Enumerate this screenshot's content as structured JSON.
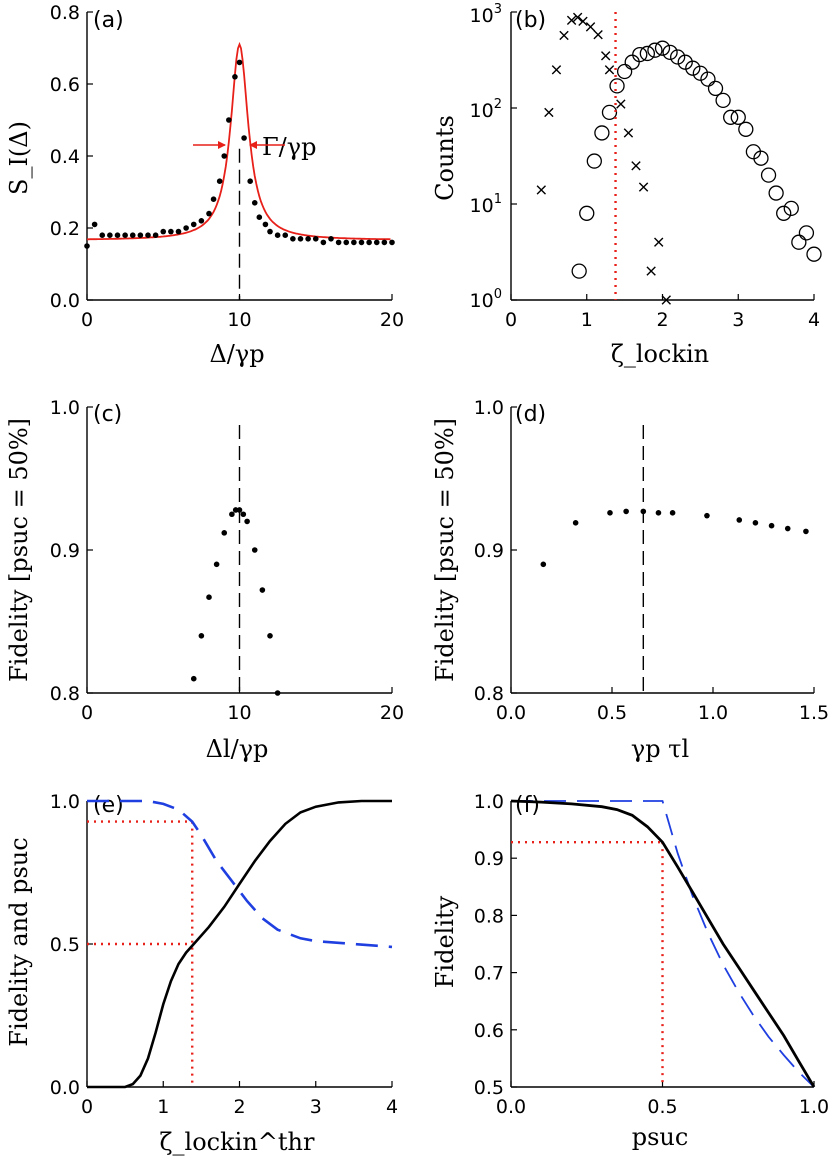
{
  "chart_data": [
    {
      "panel": "(a)",
      "type": "line",
      "xlabel": "Δ/γp",
      "ylabel": "S_I(Δ)",
      "xlim": [
        0,
        20
      ],
      "ylim": [
        0,
        0.8
      ],
      "xticks": [
        0,
        10,
        20
      ],
      "yticks": [
        0.0,
        0.2,
        0.4,
        0.6,
        0.8
      ],
      "annotation": "Γ/γp",
      "vline_x": 10,
      "fit": {
        "name": "Lorentzian fit",
        "color": "#e8201a",
        "baseline": 0.166,
        "amplitude": 0.544,
        "center": 10,
        "half_width": 0.7
      },
      "series": [
        {
          "name": "data",
          "style": "dots",
          "x": [
            0.0,
            0.5,
            1.0,
            1.5,
            2.0,
            2.5,
            3.0,
            3.5,
            4.0,
            4.5,
            5.0,
            5.5,
            6.0,
            6.5,
            7.0,
            7.5,
            8.0,
            8.3,
            8.7,
            9.0,
            9.3,
            9.7,
            10.0,
            10.3,
            10.7,
            11.0,
            11.3,
            11.7,
            12.0,
            12.5,
            13.0,
            13.5,
            14.0,
            14.5,
            15.0,
            15.5,
            16.0,
            16.5,
            17.0,
            17.5,
            18.0,
            18.5,
            19.0,
            19.5,
            20.0
          ],
          "y": [
            0.15,
            0.21,
            0.18,
            0.18,
            0.18,
            0.18,
            0.18,
            0.18,
            0.18,
            0.18,
            0.19,
            0.19,
            0.19,
            0.2,
            0.21,
            0.22,
            0.24,
            0.28,
            0.33,
            0.4,
            0.5,
            0.62,
            0.66,
            0.45,
            0.33,
            0.27,
            0.23,
            0.21,
            0.19,
            0.18,
            0.18,
            0.17,
            0.17,
            0.17,
            0.17,
            0.16,
            0.17,
            0.16,
            0.16,
            0.16,
            0.16,
            0.16,
            0.16,
            0.16,
            0.16
          ]
        }
      ]
    },
    {
      "panel": "(b)",
      "type": "scatter",
      "xlabel": "ζ_lockin",
      "ylabel": "Counts",
      "yscale": "log",
      "xlim": [
        0,
        4
      ],
      "ylim": [
        1,
        1000
      ],
      "xticks": [
        0,
        1,
        2,
        3,
        4
      ],
      "yticks": [
        "10^0",
        "10^1",
        "10^2",
        "10^3"
      ],
      "vline_x": 1.38,
      "vline_color": "#e8201a",
      "series": [
        {
          "name": "crosses",
          "marker": "x",
          "x": [
            0.4,
            0.5,
            0.6,
            0.7,
            0.8,
            0.88,
            0.95,
            1.05,
            1.15,
            1.25,
            1.3,
            1.45,
            1.55,
            1.65,
            1.75,
            1.85,
            1.95,
            2.05
          ],
          "y": [
            14,
            90,
            250,
            570,
            820,
            880,
            800,
            700,
            580,
            350,
            250,
            110,
            55,
            25,
            15,
            2,
            4,
            1
          ]
        },
        {
          "name": "circles",
          "marker": "o",
          "x": [
            0.9,
            1.0,
            1.1,
            1.2,
            1.3,
            1.4,
            1.5,
            1.6,
            1.7,
            1.8,
            1.9,
            2.0,
            2.1,
            2.2,
            2.3,
            2.4,
            2.5,
            2.6,
            2.7,
            2.8,
            2.9,
            3.0,
            3.1,
            3.2,
            3.3,
            3.4,
            3.5,
            3.6,
            3.7,
            3.8,
            3.9,
            4.0
          ],
          "y": [
            2,
            8,
            28,
            55,
            90,
            170,
            240,
            300,
            360,
            370,
            400,
            420,
            380,
            340,
            300,
            260,
            230,
            200,
            160,
            120,
            80,
            80,
            60,
            35,
            30,
            20,
            13,
            8,
            9,
            4,
            5,
            3
          ]
        }
      ]
    },
    {
      "panel": "(c)",
      "type": "scatter",
      "xlabel": "Δl/γp",
      "ylabel": "Fidelity [psuc = 50%]",
      "xlim": [
        0,
        20
      ],
      "ylim": [
        0.8,
        1.0
      ],
      "xticks": [
        0,
        10,
        20
      ],
      "yticks": [
        0.8,
        0.9,
        1.0
      ],
      "vline_x": 10,
      "series": [
        {
          "name": "data",
          "style": "dots",
          "x": [
            7.0,
            7.5,
            8.0,
            8.5,
            9.0,
            9.5,
            9.75,
            10.0,
            10.25,
            10.5,
            11.0,
            11.5,
            12.0,
            12.5
          ],
          "y": [
            0.81,
            0.84,
            0.867,
            0.89,
            0.912,
            0.925,
            0.928,
            0.928,
            0.925,
            0.92,
            0.9,
            0.872,
            0.84,
            0.8
          ]
        }
      ]
    },
    {
      "panel": "(d)",
      "type": "scatter",
      "xlabel": "γp τl",
      "ylabel": "Fidelity [psuc = 50%]",
      "xlim": [
        0,
        1.5
      ],
      "ylim": [
        0.8,
        1.0
      ],
      "xticks": [
        0.0,
        0.5,
        1.0,
        1.5
      ],
      "yticks": [
        0.8,
        0.9,
        1.0
      ],
      "vline_x": 0.655,
      "series": [
        {
          "name": "data",
          "style": "dots",
          "x": [
            0.16,
            0.32,
            0.49,
            0.57,
            0.655,
            0.73,
            0.8,
            0.97,
            1.13,
            1.21,
            1.29,
            1.37,
            1.46
          ],
          "y": [
            0.89,
            0.919,
            0.926,
            0.927,
            0.927,
            0.926,
            0.926,
            0.924,
            0.921,
            0.919,
            0.917,
            0.915,
            0.913
          ]
        }
      ]
    },
    {
      "panel": "(e)",
      "type": "line",
      "xlabel": "ζ_lockin^thr",
      "ylabel": "Fidelity and psuc",
      "xlim": [
        0,
        4
      ],
      "ylim": [
        0,
        1
      ],
      "xticks": [
        0,
        1,
        2,
        3,
        4
      ],
      "yticks": [
        0.0,
        0.5,
        1.0
      ],
      "guide_x": 1.38,
      "guide_levels": [
        0.928,
        0.5
      ],
      "guide_color": "#e8201a",
      "series": [
        {
          "name": "psuc",
          "color": "#000000",
          "style": "solid",
          "x": [
            0,
            0.5,
            0.6,
            0.7,
            0.8,
            0.9,
            1.0,
            1.1,
            1.2,
            1.3,
            1.4,
            1.6,
            1.8,
            2.0,
            2.2,
            2.4,
            2.6,
            2.8,
            3.0,
            3.3,
            3.6,
            4.0
          ],
          "y": [
            0,
            0,
            0.01,
            0.04,
            0.1,
            0.19,
            0.29,
            0.37,
            0.43,
            0.47,
            0.5,
            0.56,
            0.63,
            0.71,
            0.79,
            0.86,
            0.92,
            0.96,
            0.98,
            0.995,
            1.0,
            1.0
          ]
        },
        {
          "name": "Fidelity",
          "color": "#1f3fe0",
          "style": "dashed",
          "x": [
            0,
            0.4,
            0.6,
            0.8,
            1.0,
            1.2,
            1.38,
            1.5,
            1.7,
            1.9,
            2.1,
            2.3,
            2.5,
            2.8,
            3.0,
            3.5,
            4.0
          ],
          "y": [
            1.0,
            1.0,
            1.0,
            1.0,
            0.99,
            0.97,
            0.928,
            0.88,
            0.79,
            0.72,
            0.65,
            0.59,
            0.55,
            0.52,
            0.51,
            0.5,
            0.49
          ]
        }
      ]
    },
    {
      "panel": "(f)",
      "type": "line",
      "xlabel": "psuc",
      "ylabel": "Fidelity",
      "xlim": [
        0,
        1
      ],
      "ylim": [
        0.5,
        1.0
      ],
      "xticks": [
        0.0,
        0.5,
        1.0
      ],
      "yticks": [
        0.5,
        0.6,
        0.7,
        0.8,
        0.9,
        1.0
      ],
      "guide_x": 0.5,
      "guide_y": 0.928,
      "guide_color": "#e8201a",
      "series": [
        {
          "name": "Fidelity",
          "color": "#000000",
          "style": "solid",
          "x": [
            0,
            0.1,
            0.2,
            0.3,
            0.35,
            0.4,
            0.45,
            0.5,
            0.55,
            0.6,
            0.65,
            0.7,
            0.75,
            0.8,
            0.85,
            0.9,
            0.95,
            1.0
          ],
          "y": [
            1.0,
            0.998,
            0.995,
            0.99,
            0.985,
            0.975,
            0.955,
            0.928,
            0.885,
            0.84,
            0.795,
            0.75,
            0.71,
            0.67,
            0.63,
            0.59,
            0.545,
            0.5
          ]
        },
        {
          "name": "bound",
          "color": "#1f3fe0",
          "style": "dashed",
          "x": [
            0,
            0.5,
            0.55,
            0.6,
            0.65,
            0.7,
            0.75,
            0.8,
            0.85,
            0.9,
            0.95,
            1.0
          ],
          "y": [
            1.0,
            1.0,
            0.909,
            0.833,
            0.769,
            0.714,
            0.667,
            0.625,
            0.588,
            0.556,
            0.526,
            0.5
          ]
        }
      ]
    }
  ]
}
